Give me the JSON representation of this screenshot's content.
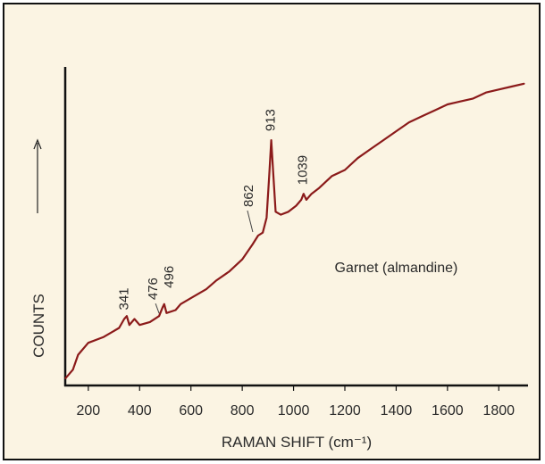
{
  "chart_data": {
    "type": "line",
    "title": "",
    "xlabel": "RAMAN SHIFT (cm⁻¹)",
    "ylabel": "COUNTS",
    "arrow_icon": "up-arrow",
    "xlim": [
      110,
      1900
    ],
    "ylim": [
      0,
      100
    ],
    "grid": false,
    "x_ticks": [
      "200",
      "400",
      "600",
      "800",
      "1000",
      "1200",
      "1400",
      "1600",
      "1800"
    ],
    "x_tick_values": [
      200,
      400,
      600,
      800,
      1000,
      1200,
      1400,
      1600,
      1800
    ],
    "series": [
      {
        "name": "",
        "color": "#8b1a1a",
        "points": [
          [
            110,
            2
          ],
          [
            140,
            5
          ],
          [
            160,
            10
          ],
          [
            200,
            14
          ],
          [
            260,
            16
          ],
          [
            320,
            19
          ],
          [
            340,
            22
          ],
          [
            350,
            23
          ],
          [
            360,
            20
          ],
          [
            380,
            22
          ],
          [
            400,
            20
          ],
          [
            440,
            21
          ],
          [
            476,
            23
          ],
          [
            490,
            26
          ],
          [
            496,
            27
          ],
          [
            505,
            24
          ],
          [
            540,
            25
          ],
          [
            560,
            27
          ],
          [
            600,
            29
          ],
          [
            660,
            32
          ],
          [
            700,
            35
          ],
          [
            750,
            38
          ],
          [
            800,
            42
          ],
          [
            840,
            47
          ],
          [
            862,
            50
          ],
          [
            880,
            51
          ],
          [
            895,
            56
          ],
          [
            905,
            70
          ],
          [
            913,
            82
          ],
          [
            920,
            72
          ],
          [
            930,
            58
          ],
          [
            950,
            57
          ],
          [
            980,
            58
          ],
          [
            1010,
            60
          ],
          [
            1030,
            62
          ],
          [
            1039,
            64
          ],
          [
            1050,
            62
          ],
          [
            1070,
            64
          ],
          [
            1100,
            66
          ],
          [
            1150,
            70
          ],
          [
            1200,
            72
          ],
          [
            1250,
            76
          ],
          [
            1300,
            79
          ],
          [
            1350,
            82
          ],
          [
            1400,
            85
          ],
          [
            1450,
            88
          ],
          [
            1500,
            90
          ],
          [
            1550,
            92
          ],
          [
            1600,
            94
          ],
          [
            1650,
            95
          ],
          [
            1700,
            96
          ],
          [
            1750,
            98
          ],
          [
            1800,
            99
          ],
          [
            1850,
            100
          ],
          [
            1900,
            101
          ]
        ]
      }
    ],
    "annotations": [
      {
        "text": "341",
        "x": 341
      },
      {
        "text": "476",
        "x": 476
      },
      {
        "text": "496",
        "x": 496
      },
      {
        "text": "862",
        "x": 862
      },
      {
        "text": "913",
        "x": 913
      },
      {
        "text": "1039",
        "x": 1039
      },
      {
        "text": "Garnet (almandine)",
        "x": 1400
      }
    ]
  }
}
